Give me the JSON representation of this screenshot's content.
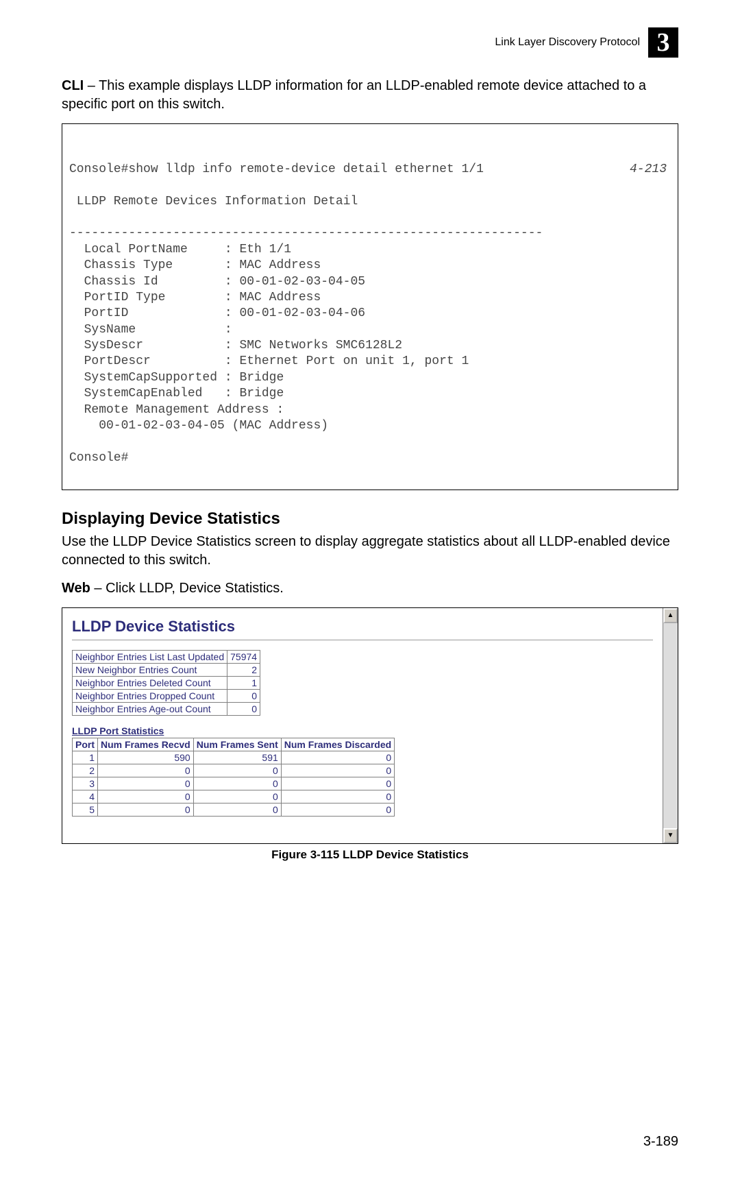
{
  "header": {
    "title": "Link Layer Discovery Protocol",
    "chapter": "3"
  },
  "intro": {
    "prefix": "CLI",
    "text": " – This example displays LLDP information for an LLDP-enabled remote device attached to a specific port on this switch."
  },
  "cli": {
    "command": "Console#show lldp info remote-device detail ethernet 1/1",
    "ref": "4-213",
    "body": "\n LLDP Remote Devices Information Detail\n\n----------------------------------------------------------------\n  Local PortName     : Eth 1/1\n  Chassis Type       : MAC Address\n  Chassis Id         : 00-01-02-03-04-05\n  PortID Type        : MAC Address\n  PortID             : 00-01-02-03-04-06\n  SysName            : \n  SysDescr           : SMC Networks SMC6128L2\n  PortDescr          : Ethernet Port on unit 1, port 1\n  SystemCapSupported : Bridge\n  SystemCapEnabled   : Bridge\n  Remote Management Address :\n    00-01-02-03-04-05 (MAC Address)\n\nConsole#"
  },
  "section": {
    "heading": "Displaying Device Statistics",
    "para": "Use the LLDP Device Statistics screen to display aggregate statistics about all LLDP-enabled device connected to this switch.",
    "web_prefix": "Web",
    "web_text": " – Click LLDP, Device Statistics."
  },
  "screenshot": {
    "title": "LLDP Device Statistics",
    "kv": [
      {
        "label": "Neighbor Entries List Last Updated",
        "value": "75974"
      },
      {
        "label": "New Neighbor Entries Count",
        "value": "2"
      },
      {
        "label": "Neighbor Entries Deleted Count",
        "value": "1"
      },
      {
        "label": "Neighbor Entries Dropped Count",
        "value": "0"
      },
      {
        "label": "Neighbor Entries Age-out Count",
        "value": "0"
      }
    ],
    "port_stats_label": "LLDP Port Statistics",
    "port_headers": [
      "Port",
      "Num Frames Recvd",
      "Num Frames Sent",
      "Num Frames Discarded"
    ],
    "port_rows": [
      [
        "1",
        "590",
        "591",
        "0"
      ],
      [
        "2",
        "0",
        "0",
        "0"
      ],
      [
        "3",
        "0",
        "0",
        "0"
      ],
      [
        "4",
        "0",
        "0",
        "0"
      ],
      [
        "5",
        "0",
        "0",
        "0"
      ]
    ]
  },
  "figure_caption": "Figure 3-115  LLDP Device Statistics",
  "page_number": "3-189",
  "colors": {
    "kv_text": "#2d2d7a",
    "border": "#808080",
    "scroll_bg": "#dddddd",
    "btn_bg": "#d4d0c8"
  }
}
